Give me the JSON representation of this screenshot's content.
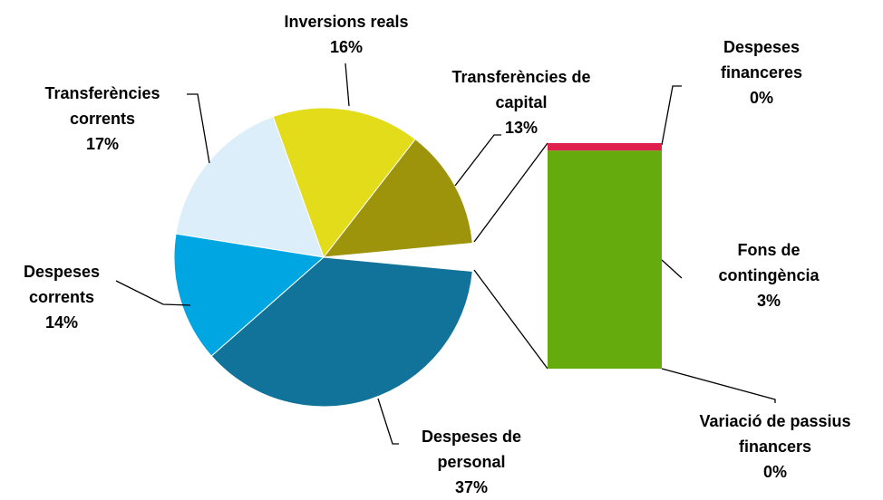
{
  "chart_data": {
    "type": "bar-of-pie",
    "slices": [
      {
        "name": "Despeses de personal",
        "value": 37,
        "value_label": "37%",
        "color": "#117399"
      },
      {
        "name": "Despeses corrents",
        "value": 14,
        "value_label": "14%",
        "color": "#00a6e2"
      },
      {
        "name": "Transferències corrents",
        "value": 17,
        "value_label": "17%",
        "color": "#dbeefa"
      },
      {
        "name": "Inversions reals",
        "value": 16,
        "value_label": "16%",
        "color": "#e3dc1a"
      },
      {
        "name": "Transferències de capital",
        "value": 13,
        "value_label": "13%",
        "color": "#9e940b"
      }
    ],
    "bar_slices": [
      {
        "name": "Despeses financeres",
        "value": 0.1,
        "value_label": "0%",
        "color": "#e0204c"
      },
      {
        "name": "Fons de contingència",
        "value": 2.9,
        "value_label": "3%",
        "color": "#66ab0e"
      },
      {
        "name": "Variació de passius financers",
        "value": 0,
        "value_label": "0%",
        "color": "#888888"
      }
    ]
  }
}
